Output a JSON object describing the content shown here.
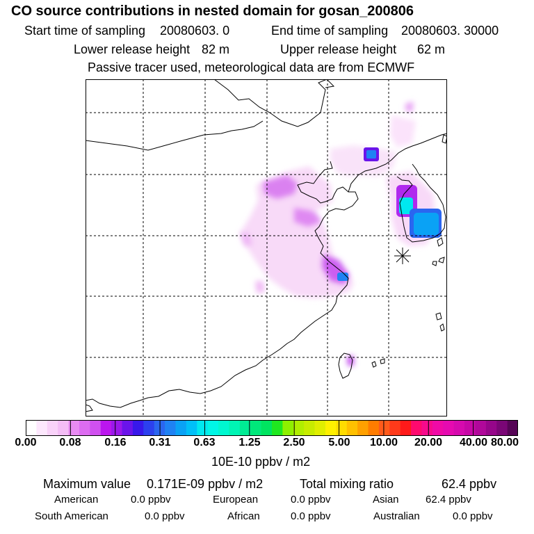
{
  "header": {
    "title": "CO  source contributions in nested domain for gosan_200806",
    "start_label": "Start time of sampling",
    "start_value": "20080603.    0",
    "end_label": "End time of sampling",
    "end_value": "20080603. 30000",
    "lower_label": "Lower release height",
    "lower_value": "82 m",
    "upper_label": "Upper release height",
    "upper_value": "62 m",
    "note": "Passive tracer used, meteorological data are from ECMWF"
  },
  "colorbar": {
    "labels": [
      "0.00",
      "0.08",
      "0.16",
      "0.31",
      "0.63",
      "1.25",
      "2.50",
      "5.00",
      "10.00",
      "20.00",
      "40.00",
      "80.00"
    ],
    "unit": "10E-10 ppbv / m2",
    "colors": [
      "#ffffff",
      "#fde8fd",
      "#f9d2f9",
      "#f4bdf6",
      "#e98bf3",
      "#dd6cf1",
      "#d050ef",
      "#bb16ee",
      "#9a18ea",
      "#6a14ea",
      "#3818ea",
      "#2c40ee",
      "#2a66f0",
      "#1f82f3",
      "#0aa2f5",
      "#00c0f8",
      "#00e8f0",
      "#00f6e6",
      "#00f8d0",
      "#00f4b4",
      "#00ec94",
      "#00e87a",
      "#00e460",
      "#20e820",
      "#8ef000",
      "#b0ee00",
      "#c8ec00",
      "#e0ee00",
      "#fff000",
      "#ffdc00",
      "#ffc000",
      "#ffa000",
      "#ff7c00",
      "#ff5a1a",
      "#ff3a1a",
      "#ff1a1a",
      "#ff0a6e",
      "#f70a8c",
      "#f00aa6",
      "#e60ab0",
      "#d60aae",
      "#c608a6",
      "#b0089a",
      "#96068a",
      "#7a0676",
      "#560456"
    ]
  },
  "map": {
    "marker": "receptor-star"
  },
  "footer": {
    "max_label": "Maximum value",
    "max_value": "0.171E-09 ppbv / m2",
    "total_label": "Total mixing ratio",
    "total_value": "62.4 ppbv",
    "regions": [
      {
        "name": "American",
        "value": "0.0 ppbv"
      },
      {
        "name": "European",
        "value": "0.0 ppbv"
      },
      {
        "name": "Asian",
        "value": "62.4 ppbv"
      },
      {
        "name": "South American",
        "value": "0.0 ppbv"
      },
      {
        "name": "African",
        "value": "0.0 ppbv"
      },
      {
        "name": "Australian",
        "value": "0.0 ppbv"
      }
    ]
  }
}
